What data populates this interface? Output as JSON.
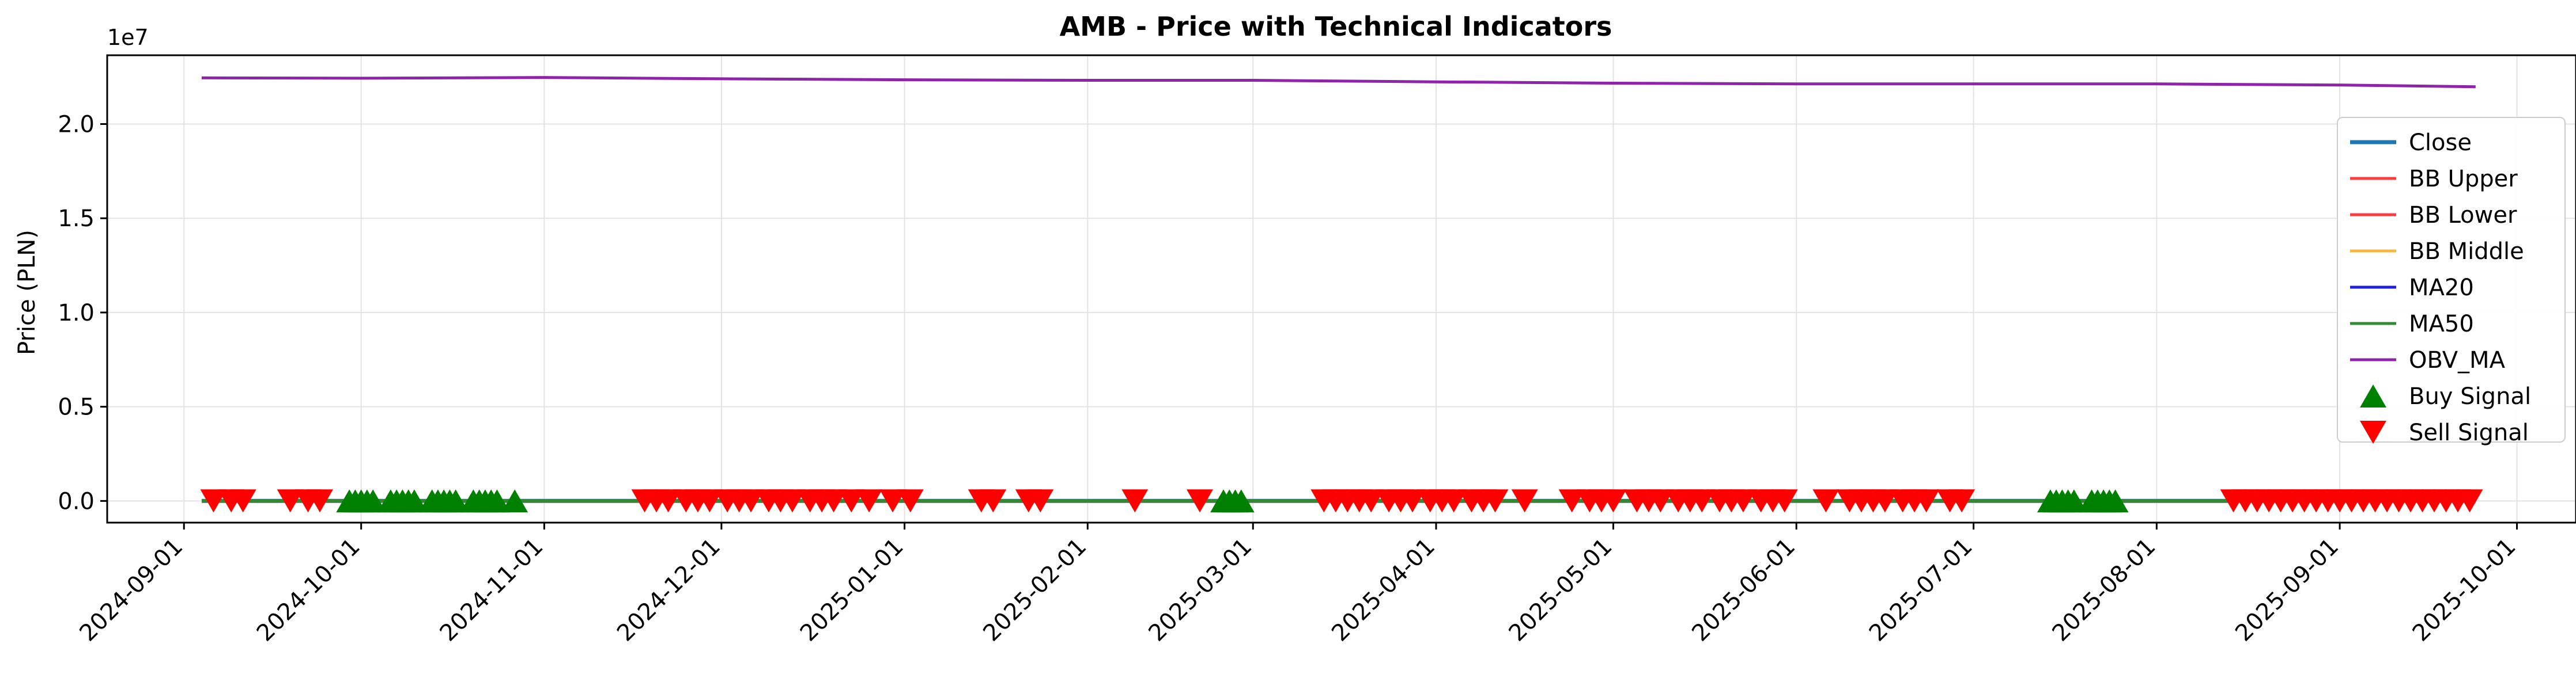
{
  "chart_data": {
    "type": "line",
    "title": "AMB - Price with Technical Indicators",
    "xlabel": "",
    "ylabel": "Price (PLN)",
    "y_offset_label": "1e7",
    "y_scale": 10000000,
    "xlim": [
      "2024-08-19",
      "2025-10-11"
    ],
    "ylim": [
      -0.115,
      2.365
    ],
    "grid": true,
    "legend_position": "center-right",
    "x_ticks": [
      "2024-09-01",
      "2024-10-01",
      "2024-11-01",
      "2024-12-01",
      "2025-01-01",
      "2025-02-01",
      "2025-03-01",
      "2025-04-01",
      "2025-05-01",
      "2025-06-01",
      "2025-07-01",
      "2025-08-01",
      "2025-09-01",
      "2025-10-01"
    ],
    "y_ticks": [
      0.0,
      0.5,
      1.0,
      1.5,
      2.0
    ],
    "y_tick_labels": [
      "0.0",
      "0.5",
      "1.0",
      "1.5",
      "2.0"
    ],
    "series": [
      {
        "name": "Close",
        "color": "#1f77b4",
        "style": "line",
        "x": [
          "2024-09-04",
          "2025-09-24"
        ],
        "y": [
          0.0,
          0.0
        ]
      },
      {
        "name": "BB Upper",
        "color": "#ff3b3b",
        "style": "line",
        "x": [
          "2024-09-04",
          "2025-09-24"
        ],
        "y": [
          0.0,
          0.0
        ]
      },
      {
        "name": "BB Lower",
        "color": "#ff3b3b",
        "style": "line",
        "x": [
          "2024-09-04",
          "2025-09-24"
        ],
        "y": [
          0.0,
          0.0
        ]
      },
      {
        "name": "BB Middle",
        "color": "#f5b942",
        "style": "line",
        "x": [
          "2024-09-04",
          "2025-09-24"
        ],
        "y": [
          0.0,
          0.0
        ]
      },
      {
        "name": "MA20",
        "color": "#2020d8",
        "style": "line",
        "x": [
          "2024-09-04",
          "2025-09-24"
        ],
        "y": [
          0.0,
          0.0
        ]
      },
      {
        "name": "MA50",
        "color": "#2e8b2e",
        "style": "line",
        "x": [
          "2024-09-04",
          "2025-09-24"
        ],
        "y": [
          0.0,
          0.0
        ]
      },
      {
        "name": "OBV_MA",
        "color": "#8e24aa",
        "style": "line",
        "x": [
          "2024-09-04",
          "2024-10-01",
          "2024-11-01",
          "2024-12-01",
          "2025-01-01",
          "2025-02-01",
          "2025-03-01",
          "2025-04-01",
          "2025-05-01",
          "2025-06-01",
          "2025-07-01",
          "2025-08-01",
          "2025-09-01",
          "2025-09-24"
        ],
        "y": [
          2.245,
          2.243,
          2.247,
          2.24,
          2.235,
          2.232,
          2.232,
          2.224,
          2.217,
          2.213,
          2.213,
          2.213,
          2.207,
          2.198
        ]
      },
      {
        "name": "Buy Signal",
        "color": "#008000",
        "style": "marker-up",
        "x": [
          "2024-09-29",
          "2024-09-30",
          "2024-10-01",
          "2024-10-02",
          "2024-10-03",
          "2024-10-06",
          "2024-10-07",
          "2024-10-08",
          "2024-10-09",
          "2024-10-10",
          "2024-10-13",
          "2024-10-14",
          "2024-10-15",
          "2024-10-16",
          "2024-10-17",
          "2024-10-20",
          "2024-10-21",
          "2024-10-22",
          "2024-10-23",
          "2024-10-24",
          "2024-10-27",
          "2025-02-24",
          "2025-02-25",
          "2025-02-26",
          "2025-02-27",
          "2025-07-14",
          "2025-07-15",
          "2025-07-16",
          "2025-07-17",
          "2025-07-18",
          "2025-07-21",
          "2025-07-22",
          "2025-07-23",
          "2025-07-24",
          "2025-07-25"
        ],
        "y": [
          0,
          0,
          0,
          0,
          0,
          0,
          0,
          0,
          0,
          0,
          0,
          0,
          0,
          0,
          0,
          0,
          0,
          0,
          0,
          0,
          0,
          0,
          0,
          0,
          0,
          0,
          0,
          0,
          0,
          0,
          0,
          0,
          0,
          0,
          0
        ]
      },
      {
        "name": "Sell Signal",
        "color": "#ff0000",
        "style": "marker-down",
        "x": [
          "2024-09-06",
          "2024-09-09",
          "2024-09-11",
          "2024-09-19",
          "2024-09-22",
          "2024-09-24",
          "2024-11-18",
          "2024-11-20",
          "2024-11-22",
          "2024-11-25",
          "2024-11-27",
          "2024-11-29",
          "2024-12-02",
          "2024-12-04",
          "2024-12-06",
          "2024-12-09",
          "2024-12-11",
          "2024-12-13",
          "2024-12-16",
          "2024-12-18",
          "2024-12-20",
          "2024-12-23",
          "2024-12-26",
          "2024-12-30",
          "2025-01-02",
          "2025-01-14",
          "2025-01-16",
          "2025-01-22",
          "2025-01-24",
          "2025-02-09",
          "2025-02-20",
          "2025-03-13",
          "2025-03-15",
          "2025-03-17",
          "2025-03-19",
          "2025-03-21",
          "2025-03-24",
          "2025-03-26",
          "2025-03-28",
          "2025-03-31",
          "2025-04-02",
          "2025-04-04",
          "2025-04-07",
          "2025-04-09",
          "2025-04-11",
          "2025-04-16",
          "2025-04-24",
          "2025-04-27",
          "2025-04-29",
          "2025-05-01",
          "2025-05-05",
          "2025-05-07",
          "2025-05-09",
          "2025-05-12",
          "2025-05-14",
          "2025-05-16",
          "2025-05-19",
          "2025-05-21",
          "2025-05-23",
          "2025-05-26",
          "2025-05-28",
          "2025-05-30",
          "2025-06-06",
          "2025-06-10",
          "2025-06-12",
          "2025-06-14",
          "2025-06-16",
          "2025-06-19",
          "2025-06-21",
          "2025-06-23",
          "2025-06-27",
          "2025-06-29",
          "2025-08-14",
          "2025-08-16",
          "2025-08-18",
          "2025-08-20",
          "2025-08-22",
          "2025-08-24",
          "2025-08-26",
          "2025-08-28",
          "2025-08-30",
          "2025-09-01",
          "2025-09-03",
          "2025-09-05",
          "2025-09-07",
          "2025-09-09",
          "2025-09-11",
          "2025-09-13",
          "2025-09-15",
          "2025-09-17",
          "2025-09-19",
          "2025-09-21",
          "2025-09-23"
        ],
        "y": [
          0,
          0,
          0,
          0,
          0,
          0,
          0,
          0,
          0,
          0,
          0,
          0,
          0,
          0,
          0,
          0,
          0,
          0,
          0,
          0,
          0,
          0,
          0,
          0,
          0,
          0,
          0,
          0,
          0,
          0,
          0,
          0,
          0,
          0,
          0,
          0,
          0,
          0,
          0,
          0,
          0,
          0,
          0,
          0,
          0,
          0,
          0,
          0,
          0,
          0,
          0,
          0,
          0,
          0,
          0,
          0,
          0,
          0,
          0,
          0,
          0,
          0,
          0,
          0,
          0,
          0,
          0,
          0,
          0,
          0,
          0,
          0,
          0,
          0,
          0,
          0,
          0,
          0,
          0,
          0,
          0,
          0,
          0,
          0,
          0,
          0,
          0,
          0,
          0,
          0,
          0,
          0,
          0
        ]
      }
    ]
  }
}
